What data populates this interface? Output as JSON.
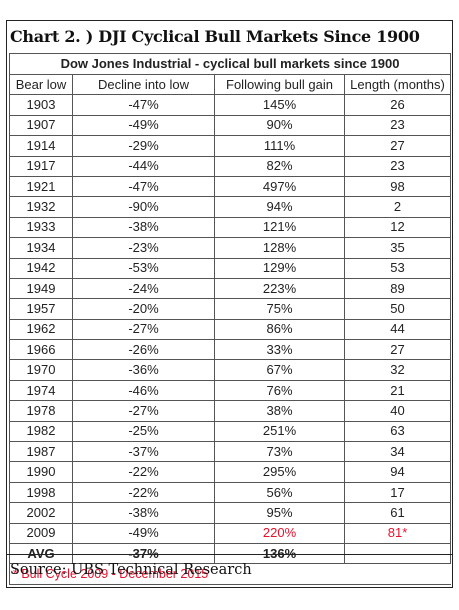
{
  "chart_title": "Chart 2. )  DJI Cyclical Bull Markets Since 1900",
  "source": "Source: UBS Technical Research",
  "chart_data": {
    "type": "table",
    "title": "Dow Jones Industrial - cyclical bull markets since 1900",
    "columns": [
      "Bear low",
      "Decline into low",
      "Following bull gain",
      "Length (months)"
    ],
    "rows": [
      [
        "1903",
        "-47%",
        "145%",
        "26"
      ],
      [
        "1907",
        "-49%",
        "90%",
        "23"
      ],
      [
        "1914",
        "-29%",
        "111%",
        "27"
      ],
      [
        "1917",
        "-44%",
        "82%",
        "23"
      ],
      [
        "1921",
        "-47%",
        "497%",
        "98"
      ],
      [
        "1932",
        "-90%",
        "94%",
        "2"
      ],
      [
        "1933",
        "-38%",
        "121%",
        "12"
      ],
      [
        "1934",
        "-23%",
        "128%",
        "35"
      ],
      [
        "1942",
        "-53%",
        "129%",
        "53"
      ],
      [
        "1949",
        "-24%",
        "223%",
        "89"
      ],
      [
        "1957",
        "-20%",
        "75%",
        "50"
      ],
      [
        "1962",
        "-27%",
        "86%",
        "44"
      ],
      [
        "1966",
        "-26%",
        "33%",
        "27"
      ],
      [
        "1970",
        "-36%",
        "67%",
        "32"
      ],
      [
        "1974",
        "-46%",
        "76%",
        "21"
      ],
      [
        "1978",
        "-27%",
        "38%",
        "40"
      ],
      [
        "1982",
        "-25%",
        "251%",
        "63"
      ],
      [
        "1987",
        "-37%",
        "73%",
        "34"
      ],
      [
        "1990",
        "-22%",
        "295%",
        "94"
      ],
      [
        "1998",
        "-22%",
        "56%",
        "17"
      ],
      [
        "2002",
        "-38%",
        "95%",
        "61"
      ],
      [
        "2009",
        "-49%",
        "220%",
        "81*"
      ]
    ],
    "highlight_row": 21,
    "highlight_color": "#e8112d",
    "summary": [
      "AVG",
      "-37%",
      "136%",
      ""
    ],
    "footnote": "* Bull Cycle 2009 - December 2015"
  }
}
